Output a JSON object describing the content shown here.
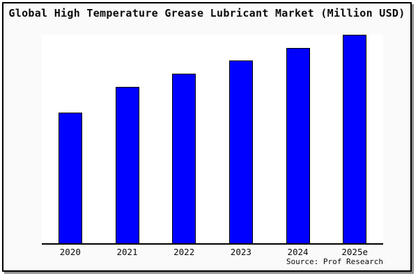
{
  "figure": {
    "title": "Global High Temperature Grease Lubricant Market (Million USD)",
    "source": "Source: Prof Research"
  },
  "colors": {
    "figure_background": "#fafafa",
    "plot_background": "#ffffff",
    "bar_fill": "#0000ff",
    "bar_border": "#000000",
    "axis_line": "#000000",
    "frame_border": "#000000",
    "frame_shadow": "#909090"
  },
  "chart_data": {
    "type": "bar",
    "title": "Global High Temperature Grease Lubricant Market (Million USD)",
    "categories": [
      "2020",
      "2021",
      "2022",
      "2023",
      "2024",
      "2025e"
    ],
    "values": [
      188,
      225,
      244,
      263,
      281,
      300
    ],
    "values_note": "chart shows no y-axis scale or data labels; values are relative bar heights estimated from pixels",
    "xlabel": "",
    "ylabel": "",
    "ylim": [
      0,
      300
    ],
    "y_axis_labels": "none",
    "grid": false,
    "legend": "none",
    "annotations": [
      "Source: Prof Research"
    ]
  }
}
